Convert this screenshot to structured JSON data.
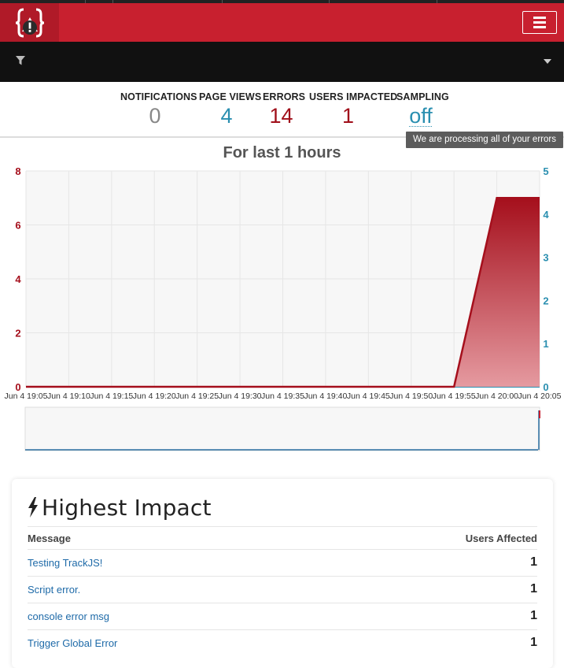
{
  "stats": [
    {
      "label": "NOTIFICATIONS",
      "value": "0"
    },
    {
      "label": "PAGE VIEWS",
      "value": "4"
    },
    {
      "label": "ERRORS",
      "value": "14"
    },
    {
      "label": "USERS IMPACTED",
      "value": "1"
    },
    {
      "label": "SAMPLING",
      "value": "off"
    }
  ],
  "sampling_tooltip": "We are processing all of your errors",
  "chart_title": "For last 1 hours",
  "chart_data": {
    "type": "area",
    "x": [
      "Jun 4 19:05",
      "Jun 4 19:10",
      "Jun 4 19:15",
      "Jun 4 19:20",
      "Jun 4 19:25",
      "Jun 4 19:30",
      "Jun 4 19:35",
      "Jun 4 19:40",
      "Jun 4 19:45",
      "Jun 4 19:50",
      "Jun 4 19:55",
      "Jun 4 20:00",
      "Jun 4 20:05"
    ],
    "series": [
      {
        "axis": "left",
        "color": "#a50f1c",
        "values": [
          0,
          0,
          0,
          0,
          0,
          0,
          0,
          0,
          0,
          0,
          0,
          7,
          7
        ]
      },
      {
        "axis": "right",
        "color": "#2a8fb0",
        "values": [
          0,
          0,
          0,
          0,
          0,
          0,
          0,
          0,
          0,
          0,
          0,
          0,
          0
        ]
      }
    ],
    "y_left": {
      "ticks": [
        "0",
        "2",
        "4",
        "6",
        "8"
      ],
      "range": [
        0,
        8
      ],
      "color": "#a50f1c"
    },
    "y_right": {
      "ticks": [
        "0",
        "1",
        "2",
        "3",
        "4",
        "5"
      ],
      "range": [
        0,
        5
      ],
      "color": "#2a8fb0"
    },
    "grid": true
  },
  "icons": {
    "logo": "trackjs-logo-icon",
    "menu": "hamburger-icon",
    "filter": "filter-icon",
    "caret": "caret-down-icon",
    "bolt": "bolt-icon"
  },
  "impact": {
    "title": "Highest Impact",
    "col_message": "Message",
    "col_users": "Users Affected",
    "rows": [
      {
        "message": "Testing TrackJS!",
        "users": "1"
      },
      {
        "message": "Script error.",
        "users": "1"
      },
      {
        "message": "console error msg",
        "users": "1"
      },
      {
        "message": "Trigger Global Error",
        "users": "1"
      }
    ]
  }
}
